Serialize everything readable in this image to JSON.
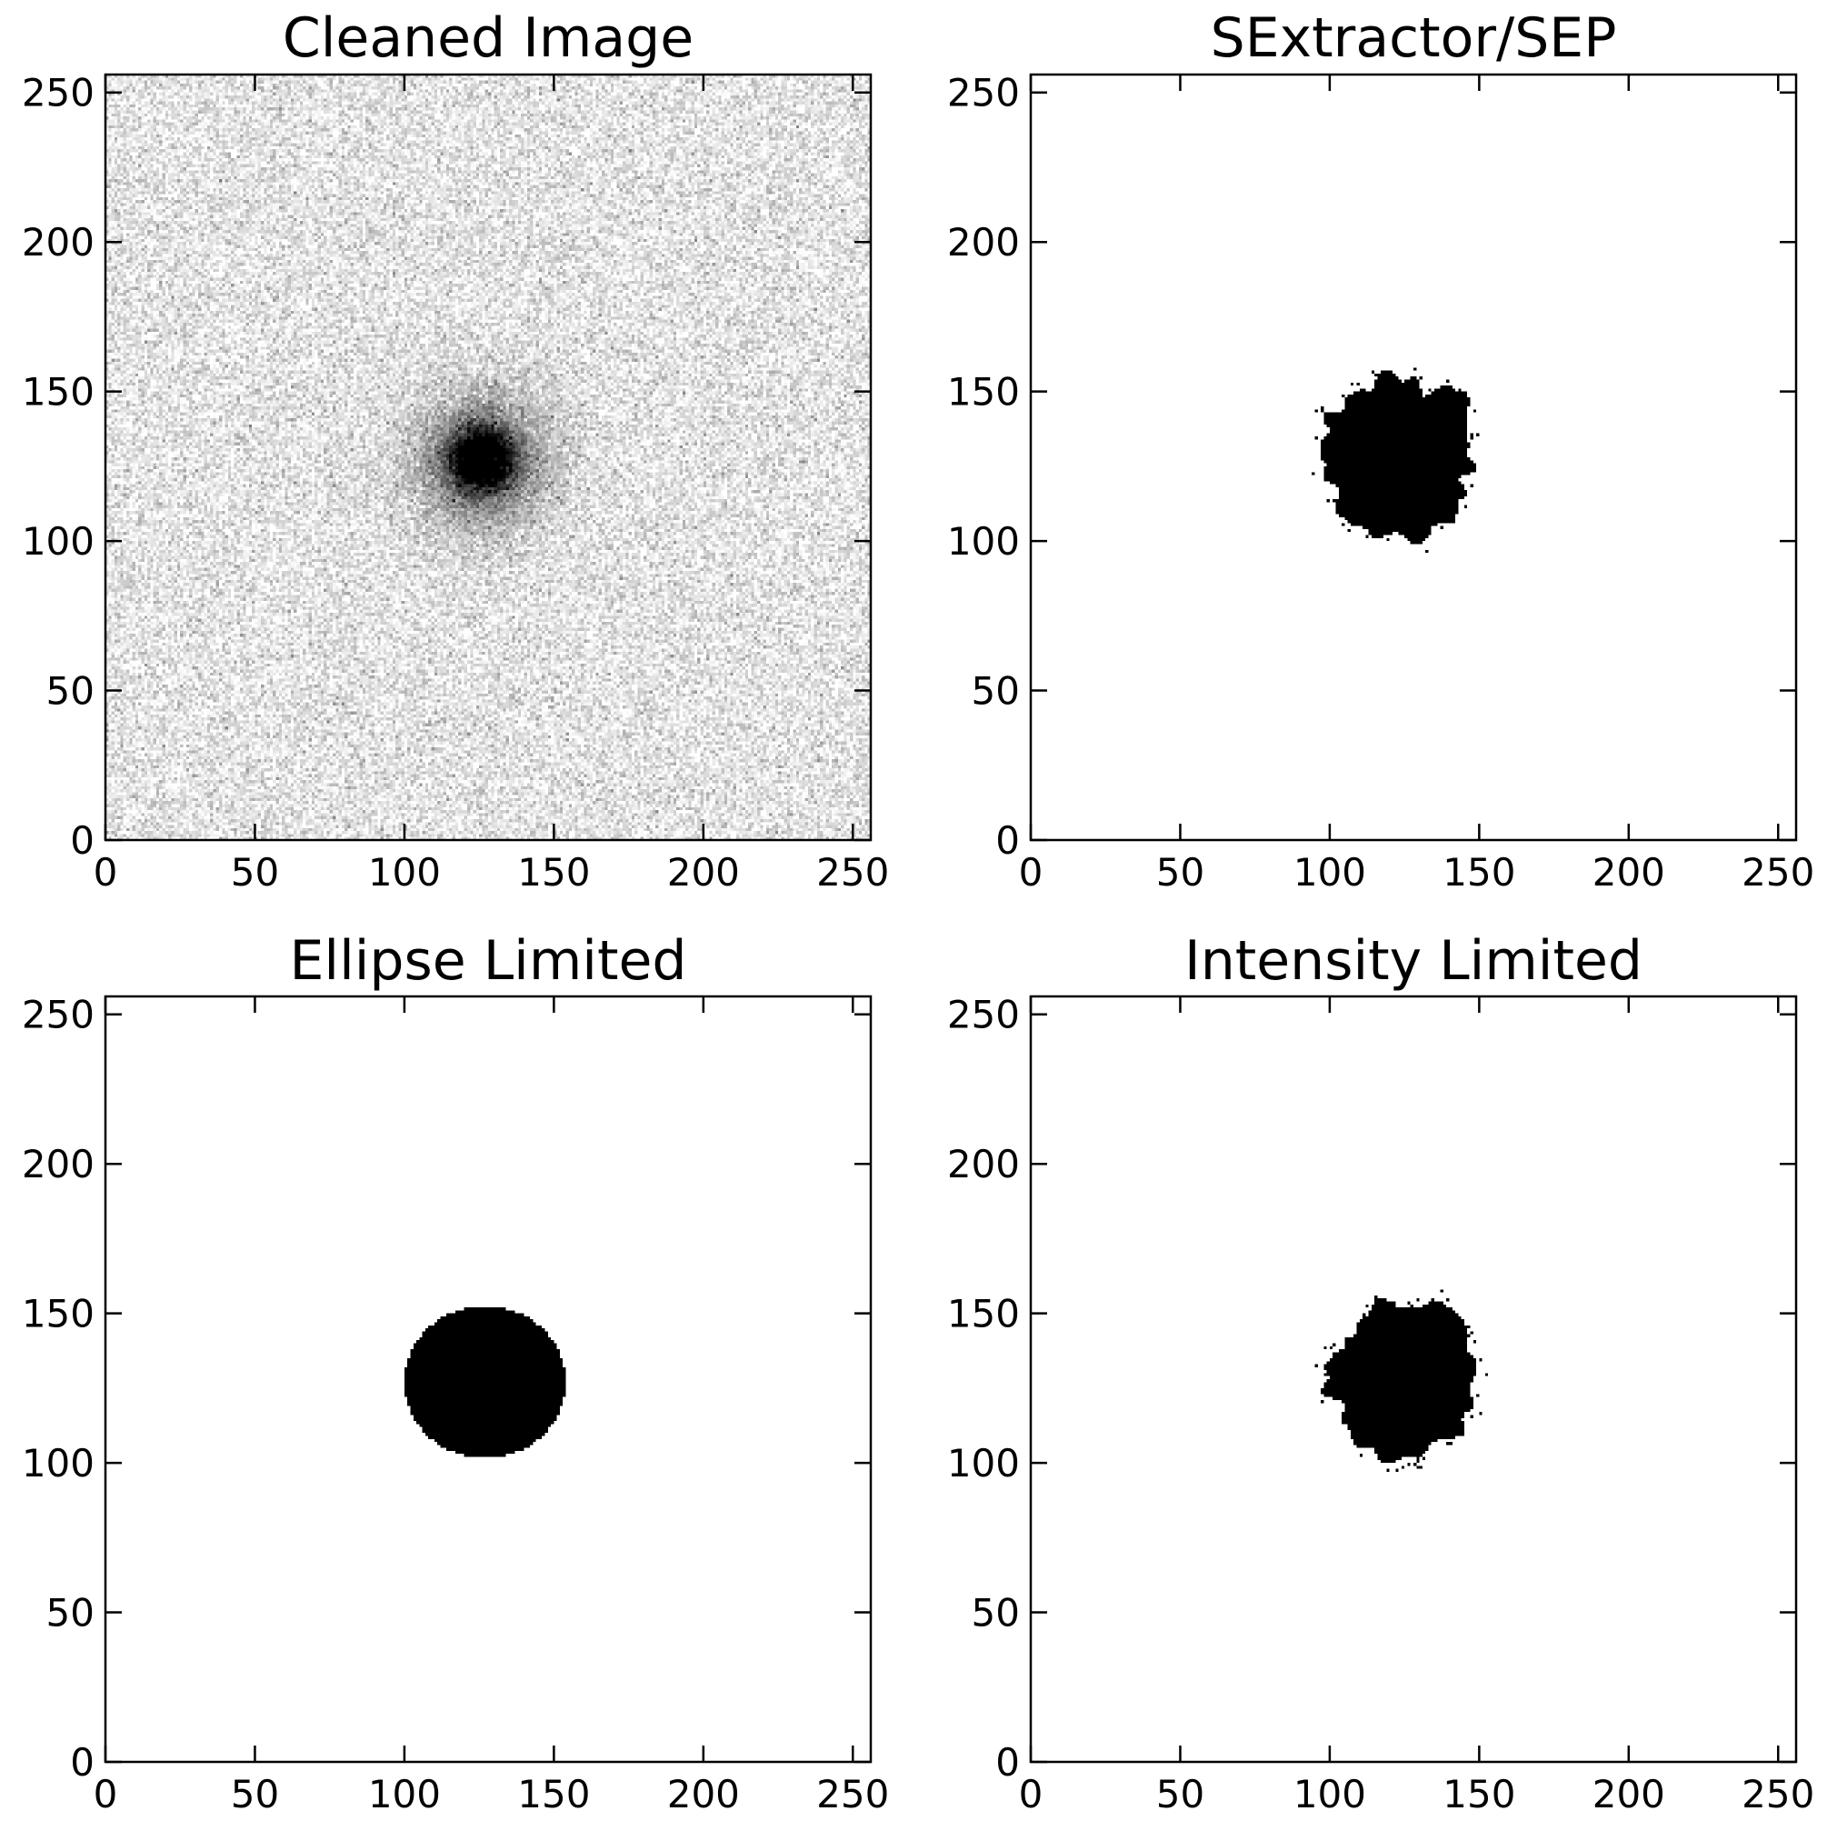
{
  "chart_data": [
    {
      "type": "heatmap",
      "title": "Cleaned Image",
      "content": "noise",
      "colormap": "gray_r",
      "xlim": [
        0,
        256
      ],
      "ylim": [
        0,
        256
      ],
      "xticks": [
        "0",
        "50",
        "100",
        "150",
        "200",
        "250"
      ],
      "yticks": [
        "0",
        "50",
        "100",
        "150",
        "200",
        "250"
      ],
      "source": {
        "x": 126,
        "y": 127,
        "core_radius": 14,
        "halo_radius": 40
      }
    },
    {
      "type": "heatmap",
      "title": "SExtractor/SEP",
      "content": "irregular-mask",
      "xlim": [
        0,
        256
      ],
      "ylim": [
        0,
        256
      ],
      "xticks": [
        "0",
        "50",
        "100",
        "150",
        "200",
        "250"
      ],
      "yticks": [
        "0",
        "50",
        "100",
        "150",
        "200",
        "250"
      ],
      "mask": {
        "x": 124,
        "y": 128,
        "rx_range": [
          20,
          33
        ],
        "ry_range": [
          20,
          29
        ]
      }
    },
    {
      "type": "heatmap",
      "title": "Ellipse Limited",
      "content": "ellipse-mask",
      "xlim": [
        0,
        256
      ],
      "ylim": [
        0,
        256
      ],
      "xticks": [
        "0",
        "50",
        "100",
        "150",
        "200",
        "250"
      ],
      "yticks": [
        "0",
        "50",
        "100",
        "150",
        "200",
        "250"
      ],
      "mask": {
        "x": 127,
        "y": 127,
        "rx": 27,
        "ry": 25.5
      }
    },
    {
      "type": "heatmap",
      "title": "Intensity Limited",
      "content": "irregular-mask",
      "xlim": [
        0,
        256
      ],
      "ylim": [
        0,
        256
      ],
      "xticks": [
        "0",
        "50",
        "100",
        "150",
        "200",
        "250"
      ],
      "yticks": [
        "0",
        "50",
        "100",
        "150",
        "200",
        "250"
      ],
      "mask": {
        "x": 125,
        "y": 128,
        "rx_range": [
          20,
          30
        ],
        "ry_range": [
          20,
          27
        ]
      }
    }
  ]
}
